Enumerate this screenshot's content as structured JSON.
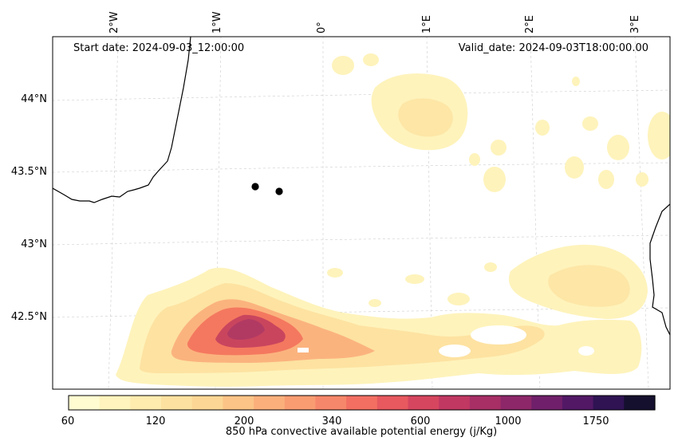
{
  "header": {
    "start_date": "Start date: 2024-09-03_12:00:00",
    "valid_date": "Valid_date: 2024-09-03T18:00:00.00"
  },
  "map": {
    "lon_labels": [
      "2°W",
      "1°W",
      "0°",
      "1°E",
      "2°E",
      "3°E"
    ],
    "lat_labels": [
      "44°N",
      "43.5°N",
      "43°N",
      "42.5°N"
    ],
    "markers": [
      {
        "name": "location-marker-1"
      },
      {
        "name": "location-marker-2"
      }
    ]
  },
  "colorbar": {
    "label": "850 hPa convective available potential energy (j/Kg)",
    "tick_labels": [
      "60",
      "120",
      "200",
      "340",
      "600",
      "1000",
      "1750"
    ],
    "colors": [
      "#fffcd2",
      "#fff4bd",
      "#feebae",
      "#fde1a0",
      "#fcd694",
      "#fcc487",
      "#fbb07c",
      "#f99c72",
      "#f7876a",
      "#f26f62",
      "#e7595f",
      "#d6465f",
      "#c13863",
      "#a72f66",
      "#8d2769",
      "#70206a",
      "#521866",
      "#2f1353",
      "#15102e"
    ]
  }
}
